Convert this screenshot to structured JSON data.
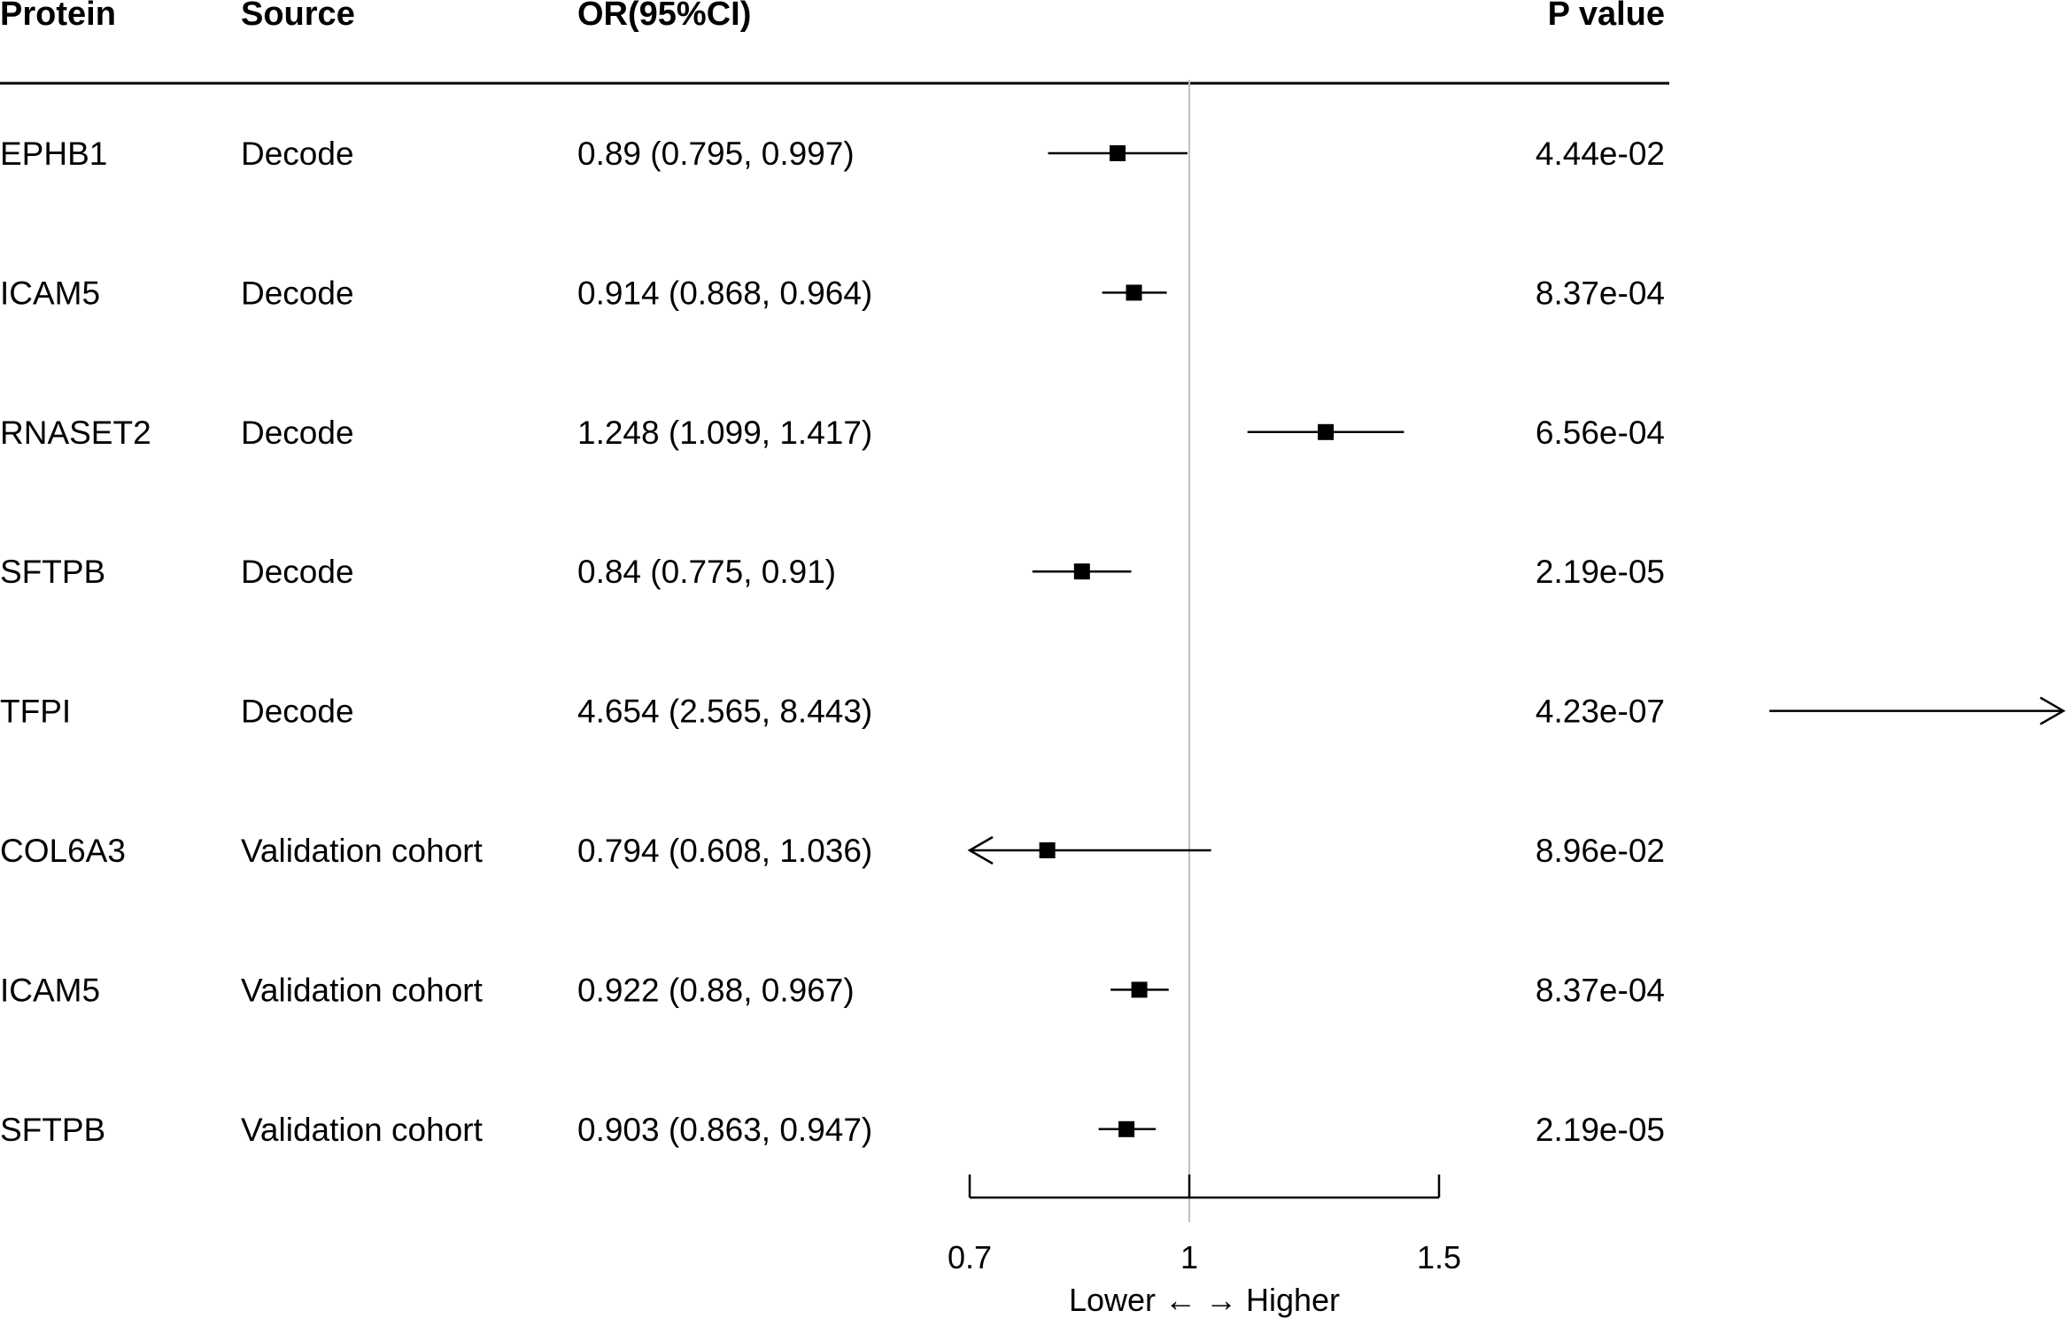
{
  "chart_data": {
    "type": "forest",
    "columns": {
      "protein": "Protein",
      "source": "Source",
      "or_ci": "OR(95%CI)",
      "p_value": "P value"
    },
    "rows": [
      {
        "protein": "EPHB1",
        "source": "Decode",
        "or_text": "0.89 (0.795, 0.997)",
        "p_text": "4.44e-02",
        "or": 0.89,
        "lower": 0.795,
        "upper": 0.997
      },
      {
        "protein": "ICAM5",
        "source": "Decode",
        "or_text": "0.914 (0.868, 0.964)",
        "p_text": "8.37e-04",
        "or": 0.914,
        "lower": 0.868,
        "upper": 0.964
      },
      {
        "protein": "RNASET2",
        "source": "Decode",
        "or_text": "1.248 (1.099, 1.417)",
        "p_text": "6.56e-04",
        "or": 1.248,
        "lower": 1.099,
        "upper": 1.417
      },
      {
        "protein": "SFTPB",
        "source": "Decode",
        "or_text": "0.84 (0.775, 0.91)",
        "p_text": "2.19e-05",
        "or": 0.84,
        "lower": 0.775,
        "upper": 0.91
      },
      {
        "protein": "TFPI",
        "source": "Decode",
        "or_text": "4.654 (2.565, 8.443)",
        "p_text": "4.23e-07",
        "or": 4.654,
        "lower": 2.565,
        "upper": 8.443
      },
      {
        "protein": "COL6A3",
        "source": "Validation cohort",
        "or_text": "0.794 (0.608, 1.036)",
        "p_text": "8.96e-02",
        "or": 0.794,
        "lower": 0.608,
        "upper": 1.036
      },
      {
        "protein": "ICAM5",
        "source": "Validation cohort",
        "or_text": "0.922 (0.88, 0.967)",
        "p_text": "8.37e-04",
        "or": 0.922,
        "lower": 0.88,
        "upper": 0.967
      },
      {
        "protein": "SFTPB",
        "source": "Validation cohort",
        "or_text": "0.903 (0.863, 0.947)",
        "p_text": "2.19e-05",
        "or": 0.903,
        "lower": 0.863,
        "upper": 0.947
      }
    ],
    "x_axis": {
      "ticks": [
        0.7,
        1,
        1.5
      ],
      "tick_labels": [
        "0.7",
        "1",
        "1.5"
      ],
      "xlim": [
        0.7,
        1.5
      ],
      "reference_line": 1,
      "label": "Lower ← → Higher"
    },
    "colors": {
      "marker": "#000000",
      "reference_line": "#bfbfbf",
      "text": "#000000"
    }
  }
}
